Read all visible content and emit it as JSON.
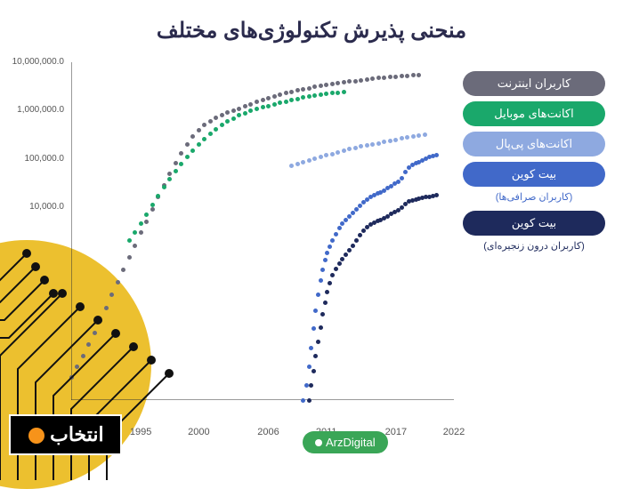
{
  "title": "منحنی پذیرش تکنولوژی‌های مختلف",
  "brand": "ArzDigital",
  "watermark": "انتخاب",
  "chart": {
    "type": "scatter-log",
    "background": "#ffffff",
    "y_scale": "log",
    "y_min": 1,
    "y_max": 10000000,
    "y_ticks": [
      {
        "pos": 0,
        "label": "10,000,000.0"
      },
      {
        "pos": 0.143,
        "label": "1,000,000.0"
      },
      {
        "pos": 0.286,
        "label": "100,000.0"
      },
      {
        "pos": 0.429,
        "label": "10,000.0"
      },
      {
        "pos": 0.572,
        "label": ""
      },
      {
        "pos": 0.715,
        "label": ""
      },
      {
        "pos": 0.858,
        "label": ""
      }
    ],
    "x_min": 1989,
    "x_max": 2022,
    "x_ticks": [
      {
        "year": 1995,
        "label": "1995"
      },
      {
        "year": 2000,
        "label": "2000"
      },
      {
        "year": 2006,
        "label": "2006"
      },
      {
        "year": 2011,
        "label": "2011"
      },
      {
        "year": 2017,
        "label": "2017"
      },
      {
        "year": 2022,
        "label": "2022"
      }
    ],
    "series": [
      {
        "name": "internet",
        "label": "کاربران اینترنت",
        "color": "#6b6b7a",
        "points": [
          [
            1989,
            3
          ],
          [
            1989.5,
            5
          ],
          [
            1990,
            8
          ],
          [
            1990.5,
            14
          ],
          [
            1991,
            25
          ],
          [
            1991.5,
            45
          ],
          [
            1992,
            80
          ],
          [
            1992.5,
            150
          ],
          [
            1993,
            280
          ],
          [
            1993.5,
            500
          ],
          [
            1994,
            900
          ],
          [
            1994.5,
            1600
          ],
          [
            1995,
            3000
          ],
          [
            1995.5,
            5000
          ],
          [
            1996,
            9000
          ],
          [
            1996.5,
            16000
          ],
          [
            1997,
            28000
          ],
          [
            1997.5,
            48000
          ],
          [
            1998,
            80000
          ],
          [
            1998.5,
            130000
          ],
          [
            1999,
            200000
          ],
          [
            1999.5,
            290000
          ],
          [
            2000,
            390000
          ],
          [
            2000.5,
            500000
          ],
          [
            2001,
            600000
          ],
          [
            2001.5,
            700000
          ],
          [
            2002,
            800000
          ],
          [
            2002.5,
            900000
          ],
          [
            2003,
            1000000
          ],
          [
            2003.5,
            1100000
          ],
          [
            2004,
            1200000
          ],
          [
            2004.5,
            1350000
          ],
          [
            2005,
            1500000
          ],
          [
            2005.5,
            1650000
          ],
          [
            2006,
            1800000
          ],
          [
            2006.5,
            1950000
          ],
          [
            2007,
            2100000
          ],
          [
            2007.5,
            2280000
          ],
          [
            2008,
            2450000
          ],
          [
            2008.5,
            2600000
          ],
          [
            2009,
            2750000
          ],
          [
            2009.5,
            2900000
          ],
          [
            2010,
            3050000
          ],
          [
            2010.5,
            3200000
          ],
          [
            2011,
            3350000
          ],
          [
            2011.5,
            3500000
          ],
          [
            2012,
            3650000
          ],
          [
            2012.5,
            3800000
          ],
          [
            2013,
            3950000
          ],
          [
            2013.5,
            4100000
          ],
          [
            2014,
            4250000
          ],
          [
            2014.5,
            4400000
          ],
          [
            2015,
            4550000
          ],
          [
            2015.5,
            4700000
          ],
          [
            2016,
            4830000
          ],
          [
            2016.5,
            4950000
          ],
          [
            2017,
            5060000
          ],
          [
            2017.5,
            5170000
          ],
          [
            2018,
            5280000
          ],
          [
            2018.5,
            5390000
          ],
          [
            2019,
            5500000
          ]
        ]
      },
      {
        "name": "mobile",
        "label": "اکانت‌های موبایل",
        "color": "#1aa86b",
        "points": [
          [
            1994,
            2000
          ],
          [
            1994.5,
            3000
          ],
          [
            1995,
            4500
          ],
          [
            1995.5,
            7000
          ],
          [
            1996,
            11000
          ],
          [
            1996.5,
            17000
          ],
          [
            1997,
            26000
          ],
          [
            1997.5,
            38000
          ],
          [
            1998,
            55000
          ],
          [
            1998.5,
            78000
          ],
          [
            1999,
            110000
          ],
          [
            1999.5,
            150000
          ],
          [
            2000,
            200000
          ],
          [
            2000.5,
            260000
          ],
          [
            2001,
            330000
          ],
          [
            2001.5,
            410000
          ],
          [
            2002,
            500000
          ],
          [
            2002.5,
            590000
          ],
          [
            2003,
            690000
          ],
          [
            2003.5,
            790000
          ],
          [
            2004,
            890000
          ],
          [
            2004.5,
            980000
          ],
          [
            2005,
            1080000
          ],
          [
            2005.5,
            1170000
          ],
          [
            2006,
            1250000
          ],
          [
            2006.5,
            1340000
          ],
          [
            2007,
            1430000
          ],
          [
            2007.5,
            1530000
          ],
          [
            2008,
            1640000
          ],
          [
            2008.5,
            1740000
          ],
          [
            2009,
            1850000
          ],
          [
            2009.5,
            1940000
          ],
          [
            2010,
            2030000
          ],
          [
            2010.5,
            2120000
          ],
          [
            2011,
            2210000
          ],
          [
            2011.5,
            2280000
          ],
          [
            2012,
            2340000
          ],
          [
            2012.5,
            2380000
          ]
        ]
      },
      {
        "name": "paypal",
        "label": "اکانت‌های پی‌پال",
        "color": "#8ea9e0",
        "points": [
          [
            2008,
            72000
          ],
          [
            2008.5,
            78000
          ],
          [
            2009,
            85000
          ],
          [
            2009.5,
            92000
          ],
          [
            2010,
            100000
          ],
          [
            2010.5,
            108000
          ],
          [
            2011,
            117000
          ],
          [
            2011.5,
            126000
          ],
          [
            2012,
            136000
          ],
          [
            2012.5,
            146000
          ],
          [
            2013,
            157000
          ],
          [
            2013.5,
            168000
          ],
          [
            2014,
            178000
          ],
          [
            2014.5,
            189000
          ],
          [
            2015,
            198000
          ],
          [
            2015.5,
            209000
          ],
          [
            2016,
            221000
          ],
          [
            2016.5,
            234000
          ],
          [
            2017,
            247000
          ],
          [
            2017.5,
            261000
          ],
          [
            2018,
            275000
          ],
          [
            2018.5,
            290000
          ],
          [
            2019,
            306000
          ],
          [
            2019.5,
            320000
          ]
        ]
      },
      {
        "name": "bitcoin-exchange",
        "label": "بیت کوین",
        "sublabel": "(کاربران صرافی‌ها)",
        "color": "#4169c9",
        "points": [
          [
            2009,
            1
          ],
          [
            2009.3,
            2
          ],
          [
            2009.5,
            5
          ],
          [
            2009.7,
            12
          ],
          [
            2009.9,
            30
          ],
          [
            2010.1,
            70
          ],
          [
            2010.3,
            150
          ],
          [
            2010.5,
            300
          ],
          [
            2010.7,
            500
          ],
          [
            2010.9,
            800
          ],
          [
            2011.1,
            1100
          ],
          [
            2011.3,
            1500
          ],
          [
            2011.5,
            2000
          ],
          [
            2011.8,
            2700
          ],
          [
            2012.1,
            3600
          ],
          [
            2012.4,
            4500
          ],
          [
            2012.7,
            5400
          ],
          [
            2013,
            6400
          ],
          [
            2013.3,
            7600
          ],
          [
            2013.6,
            9100
          ],
          [
            2013.9,
            10700
          ],
          [
            2014.2,
            12500
          ],
          [
            2014.5,
            14400
          ],
          [
            2014.8,
            16200
          ],
          [
            2015.1,
            17600
          ],
          [
            2015.4,
            19000
          ],
          [
            2015.7,
            20400
          ],
          [
            2016,
            22100
          ],
          [
            2016.3,
            24400
          ],
          [
            2016.6,
            27000
          ],
          [
            2016.9,
            30200
          ],
          [
            2017.2,
            34000
          ],
          [
            2017.5,
            39000
          ],
          [
            2017.8,
            53000
          ],
          [
            2018.1,
            66000
          ],
          [
            2018.4,
            74000
          ],
          [
            2018.7,
            80000
          ],
          [
            2019,
            86000
          ],
          [
            2019.3,
            93000
          ],
          [
            2019.6,
            100000
          ],
          [
            2019.9,
            107000
          ],
          [
            2020.2,
            115000
          ],
          [
            2020.5,
            118000
          ]
        ]
      },
      {
        "name": "bitcoin-onchain",
        "label": "بیت کوین",
        "sublabel": "(کاربران درون زنجیره‌ای)",
        "color": "#1e2a5c",
        "points": [
          [
            2009.5,
            1
          ],
          [
            2009.7,
            2
          ],
          [
            2009.9,
            4
          ],
          [
            2010.1,
            8
          ],
          [
            2010.3,
            16
          ],
          [
            2010.5,
            32
          ],
          [
            2010.7,
            60
          ],
          [
            2010.9,
            105
          ],
          [
            2011.1,
            170
          ],
          [
            2011.3,
            260
          ],
          [
            2011.5,
            380
          ],
          [
            2011.8,
            520
          ],
          [
            2012.1,
            680
          ],
          [
            2012.4,
            840
          ],
          [
            2012.7,
            1020
          ],
          [
            2013,
            1260
          ],
          [
            2013.3,
            1580
          ],
          [
            2013.6,
            2040
          ],
          [
            2013.9,
            2640
          ],
          [
            2014.2,
            3260
          ],
          [
            2014.5,
            3800
          ],
          [
            2014.8,
            4300
          ],
          [
            2015.1,
            4700
          ],
          [
            2015.4,
            5100
          ],
          [
            2015.7,
            5450
          ],
          [
            2016,
            5850
          ],
          [
            2016.3,
            6400
          ],
          [
            2016.6,
            7100
          ],
          [
            2016.9,
            7850
          ],
          [
            2017.2,
            8700
          ],
          [
            2017.5,
            9550
          ],
          [
            2017.8,
            11500
          ],
          [
            2018.1,
            13000
          ],
          [
            2018.4,
            13800
          ],
          [
            2018.7,
            14400
          ],
          [
            2019,
            15000
          ],
          [
            2019.3,
            15600
          ],
          [
            2019.6,
            16100
          ],
          [
            2019.9,
            16500
          ],
          [
            2020.2,
            16900
          ],
          [
            2020.5,
            17300
          ]
        ]
      }
    ]
  },
  "colors": {
    "title": "#2b2b4d",
    "axis": "#333333",
    "brand_bg": "#3aa657",
    "circuit": "#111111",
    "circle": "#ecc02f"
  }
}
